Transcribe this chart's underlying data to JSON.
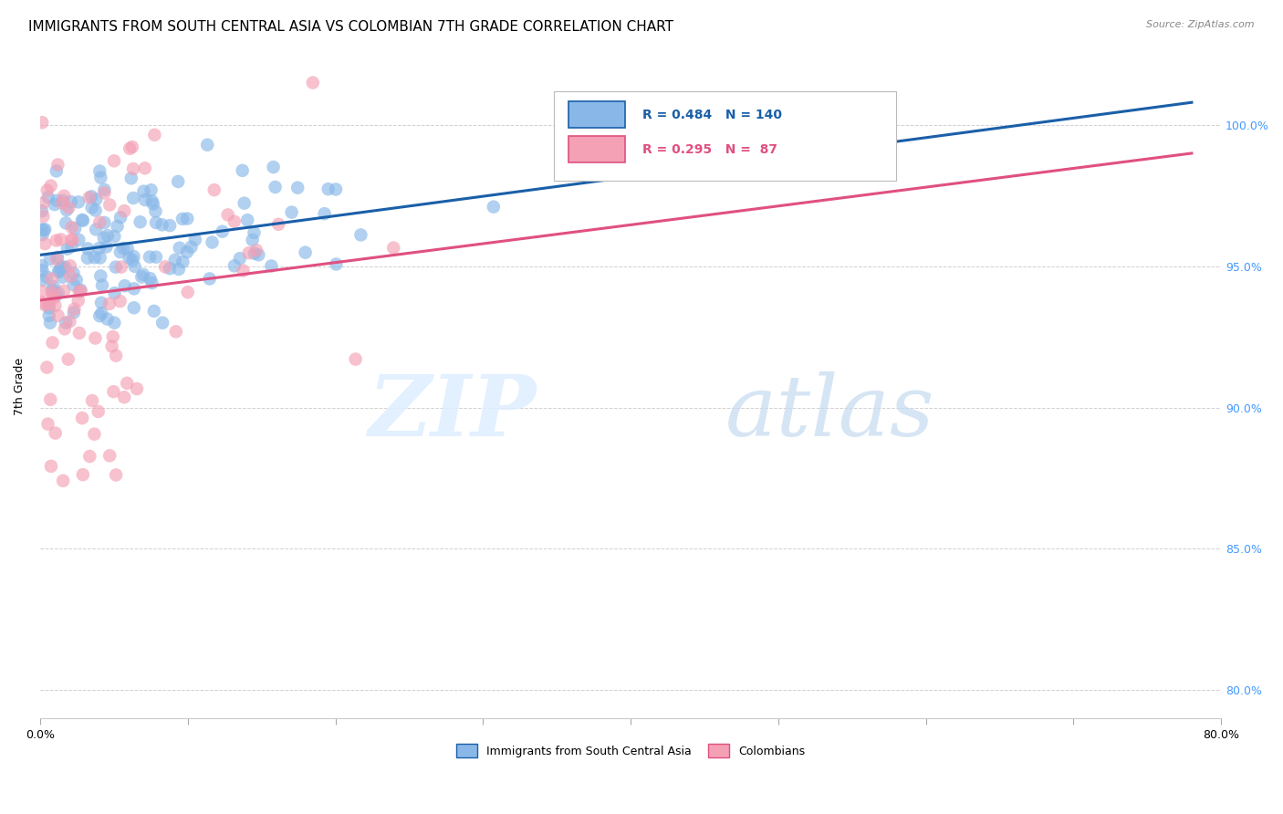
{
  "title": "IMMIGRANTS FROM SOUTH CENTRAL ASIA VS COLOMBIAN 7TH GRADE CORRELATION CHART",
  "source": "Source: ZipAtlas.com",
  "ylabel": "7th Grade",
  "y_tick_positions": [
    80.0,
    85.0,
    90.0,
    95.0,
    100.0
  ],
  "y_tick_labels": [
    "80.0%",
    "85.0%",
    "90.0%",
    "95.0%",
    "100.0%"
  ],
  "x_tick_positions": [
    0.0,
    0.1,
    0.2,
    0.3,
    0.4,
    0.5,
    0.6,
    0.7,
    0.8
  ],
  "x_tick_labels": [
    "0.0%",
    "",
    "",
    "",
    "",
    "",
    "",
    "",
    "80.0%"
  ],
  "xlim": [
    0.0,
    0.8
  ],
  "ylim": [
    79.0,
    102.5
  ],
  "blue_R": 0.484,
  "blue_N": 140,
  "pink_R": 0.295,
  "pink_N": 87,
  "blue_color": "#89b8e8",
  "blue_line_color": "#1a5fa8",
  "pink_color": "#f4a0b5",
  "pink_line_color": "#e05080",
  "legend_blue_label": "Immigrants from South Central Asia",
  "legend_pink_label": "Colombians",
  "watermark_zip": "ZIP",
  "watermark_atlas": "atlas",
  "title_fontsize": 11,
  "axis_label_fontsize": 9,
  "tick_fontsize": 9,
  "legend_fontsize": 10,
  "right_tick_color": "#4499ff",
  "grid_color": "#cccccc",
  "blue_line_x0": 0.0,
  "blue_line_x1": 0.78,
  "blue_line_y0": 95.4,
  "blue_line_y1": 100.8,
  "pink_line_x0": 0.0,
  "pink_line_x1": 0.78,
  "pink_line_y0": 93.8,
  "pink_line_y1": 99.0
}
